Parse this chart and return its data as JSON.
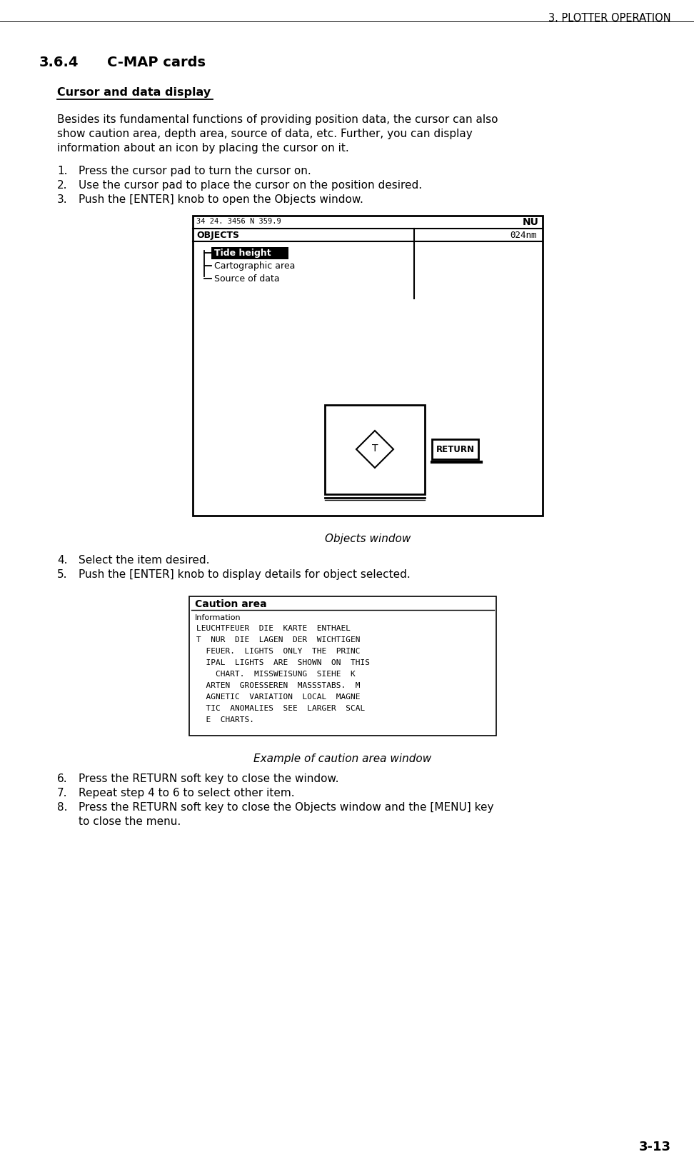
{
  "page_header": "3. PLOTTER OPERATION",
  "section_num": "3.6.4",
  "section_title": "C-MAP cards",
  "subsection_title": "Cursor and data display",
  "body_line1": "Besides its fundamental functions of providing position data, the cursor can also",
  "body_line2": "show caution area, depth area, source of data, etc. Further, you can display",
  "body_line3": "information about an icon by placing the cursor on it.",
  "step1": "Press the cursor pad to turn the cursor on.",
  "step2": "Use the cursor pad to place the cursor on the position desired.",
  "step3": "Push the [ENTER] knob to open the Objects window.",
  "screen_top_text": "34 24. 3456 N 359.9",
  "screen_top_right": "NU",
  "objects_label": "OBJECTS",
  "right_info": "024nm",
  "menu_item1": "Tide height",
  "menu_item2": "Cartographic area",
  "menu_item3": "Source of data",
  "return_label": "RETURN",
  "caption1": "Objects window",
  "step4": "Select the item desired.",
  "step5": "Push the [ENTER] knob to display details for object selected.",
  "caution_title": "Caution area",
  "caution_sub": "Information",
  "caution_line1": "LEUCHTFEUER  DIE  KARTE  ENTHAEL",
  "caution_line2": "T  NUR  DIE  LAGEN  DER  WICHTIGEN",
  "caution_line3": "  FEUER.  LIGHTS  ONLY  THE  PRINC",
  "caution_line4": "  IPAL  LIGHTS  ARE  SHOWN  ON  THIS",
  "caution_line5": "    CHART.  MISSWEISUNG  SIEHE  K",
  "caution_line6": "  ARTEN  GROESSEREN  MASSSTABS.  M",
  "caution_line7": "  AGNETIC  VARIATION  LOCAL  MAGNE",
  "caution_line8": "  TIC  ANOMALIES  SEE  LARGER  SCAL",
  "caution_line9": "  E  CHARTS.",
  "caption2": "Example of caution area window",
  "step6": "Press the RETURN soft key to close the window.",
  "step7": "Repeat step 4 to 6 to select other item.",
  "step8a": "Press the RETURN soft key to close the Objects window and the [MENU] key",
  "step8b": "to close the menu.",
  "page_num": "3-13",
  "bg_color": "#ffffff",
  "text_color": "#000000"
}
